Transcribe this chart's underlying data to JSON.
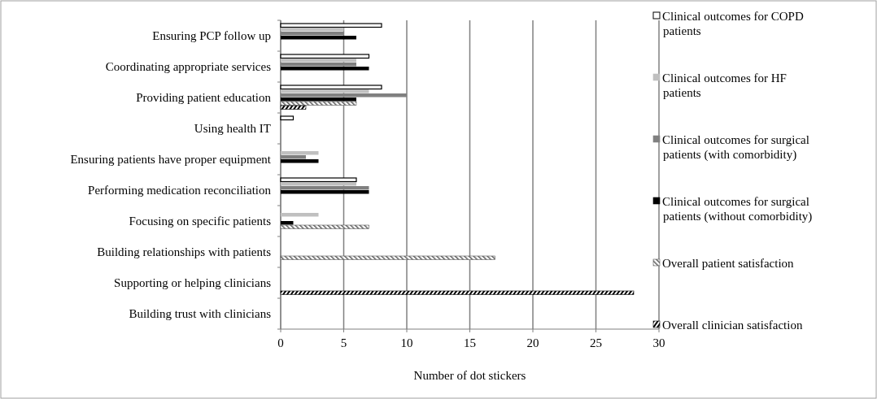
{
  "chart_data": {
    "type": "bar",
    "orientation": "horizontal",
    "xlabel": "Number of dot stickers",
    "categories": [
      "Ensuring PCP follow up",
      "Coordinating appropriate services",
      "Providing patient education",
      "Using health IT",
      "Ensuring patients have proper equipment",
      "Performing medication reconciliation",
      "Focusing on specific patients",
      "Building relationships with patients",
      "Supporting or helping clinicians",
      "Building trust with clinicians"
    ],
    "series": [
      {
        "name": "Clinical outcomes for COPD patients",
        "color": "#ffffff",
        "values": [
          8,
          7,
          8,
          1,
          null,
          6,
          null,
          null,
          null,
          null
        ]
      },
      {
        "name": "Clinical outcomes for HF patients",
        "color": "#c0c0c0",
        "values": [
          5,
          6,
          7,
          null,
          3,
          6,
          3,
          null,
          null,
          null
        ]
      },
      {
        "name": "Clinical outcomes for surgical patients (with comorbidity)",
        "color": "#808080",
        "values": [
          5,
          6,
          10,
          null,
          2,
          7,
          null,
          null,
          null,
          null
        ]
      },
      {
        "name": "Clinical outcomes for surgical patients (without comorbidity)",
        "color": "#000000",
        "values": [
          6,
          7,
          6,
          null,
          3,
          7,
          1,
          null,
          null,
          null
        ]
      },
      {
        "name": "Overall patient satisfaction",
        "color": "#595959",
        "values": [
          null,
          null,
          6,
          null,
          null,
          null,
          7,
          17,
          null,
          null
        ]
      },
      {
        "name": "Overall clinician satisfaction",
        "color": "#000000",
        "values": [
          null,
          null,
          2,
          null,
          null,
          null,
          null,
          null,
          28,
          null
        ]
      }
    ],
    "xlim": [
      0,
      30
    ],
    "xticks": [
      0,
      5,
      10,
      15,
      20,
      25,
      30
    ],
    "grid": "x",
    "legend": "right"
  }
}
